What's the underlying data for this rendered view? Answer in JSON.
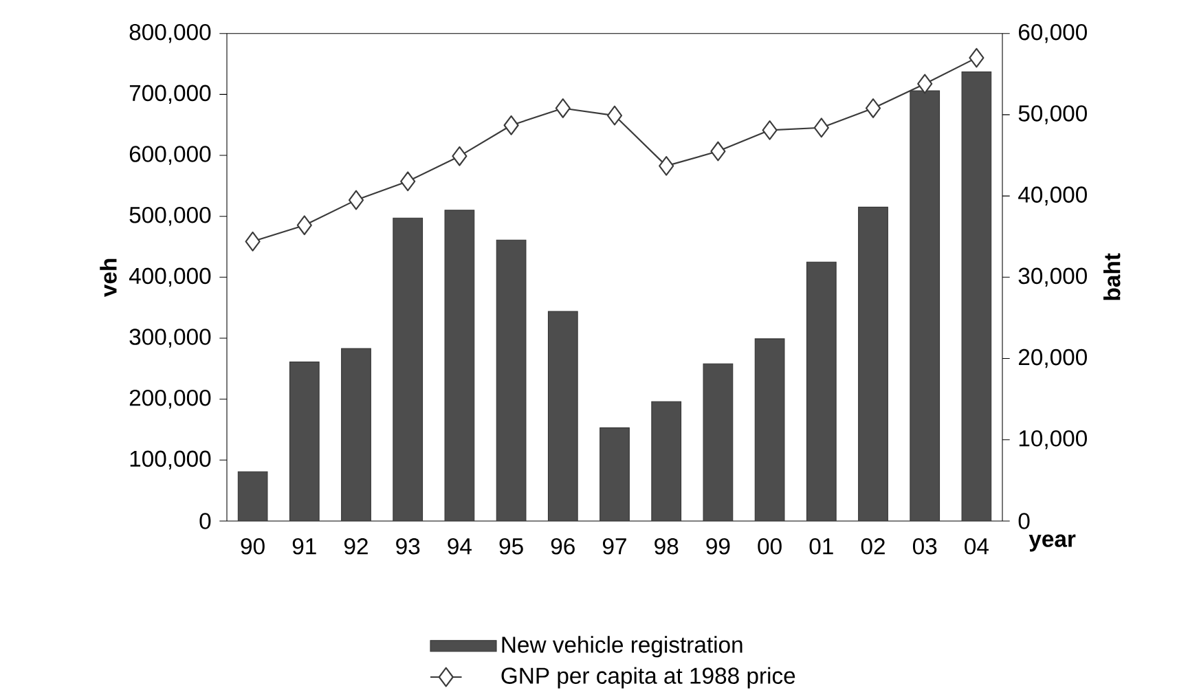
{
  "chart_data": {
    "type": "bar",
    "categories": [
      "90",
      "91",
      "92",
      "93",
      "94",
      "95",
      "96",
      "97",
      "98",
      "99",
      "00",
      "01",
      "02",
      "03",
      "04"
    ],
    "xlabel": "year",
    "ylabel": "veh",
    "y2label": "baht",
    "series": [
      {
        "name": "New vehicle registration",
        "color": "#4d4d4d",
        "values": [
          81000,
          261000,
          283000,
          497000,
          510000,
          461000,
          344000,
          153000,
          196000,
          258000,
          299000,
          425000,
          515000,
          706000,
          737000
        ]
      },
      {
        "name": "GNP per capita at 1988 price",
        "type": "line",
        "axis": "y2",
        "color": "#3a3a3a",
        "marker": "diamond",
        "values": [
          34400,
          36400,
          39500,
          41800,
          44900,
          48700,
          50800,
          49900,
          43700,
          45500,
          48100,
          48400,
          50800,
          53800,
          57000
        ]
      }
    ],
    "ylim": [
      0,
      800000
    ],
    "yticks": [
      {
        "value": 0,
        "label": "0"
      },
      {
        "value": 100000,
        "label": "100,000"
      },
      {
        "value": 200000,
        "label": "200,000"
      },
      {
        "value": 300000,
        "label": "300,000"
      },
      {
        "value": 400000,
        "label": "400,000"
      },
      {
        "value": 500000,
        "label": "500,000"
      },
      {
        "value": 600000,
        "label": "600,000"
      },
      {
        "value": 700000,
        "label": "700,000"
      },
      {
        "value": 800000,
        "label": "800,000"
      }
    ],
    "y2lim": [
      0,
      60000
    ],
    "y2ticks": [
      {
        "value": 0,
        "label": "0"
      },
      {
        "value": 10000,
        "label": "10,000"
      },
      {
        "value": 20000,
        "label": "20,000"
      },
      {
        "value": 30000,
        "label": "30,000"
      },
      {
        "value": 40000,
        "label": "40,000"
      },
      {
        "value": 50000,
        "label": "50,000"
      },
      {
        "value": 60000,
        "label": "60,000"
      }
    ],
    "grid": false,
    "legend": "bottom"
  }
}
